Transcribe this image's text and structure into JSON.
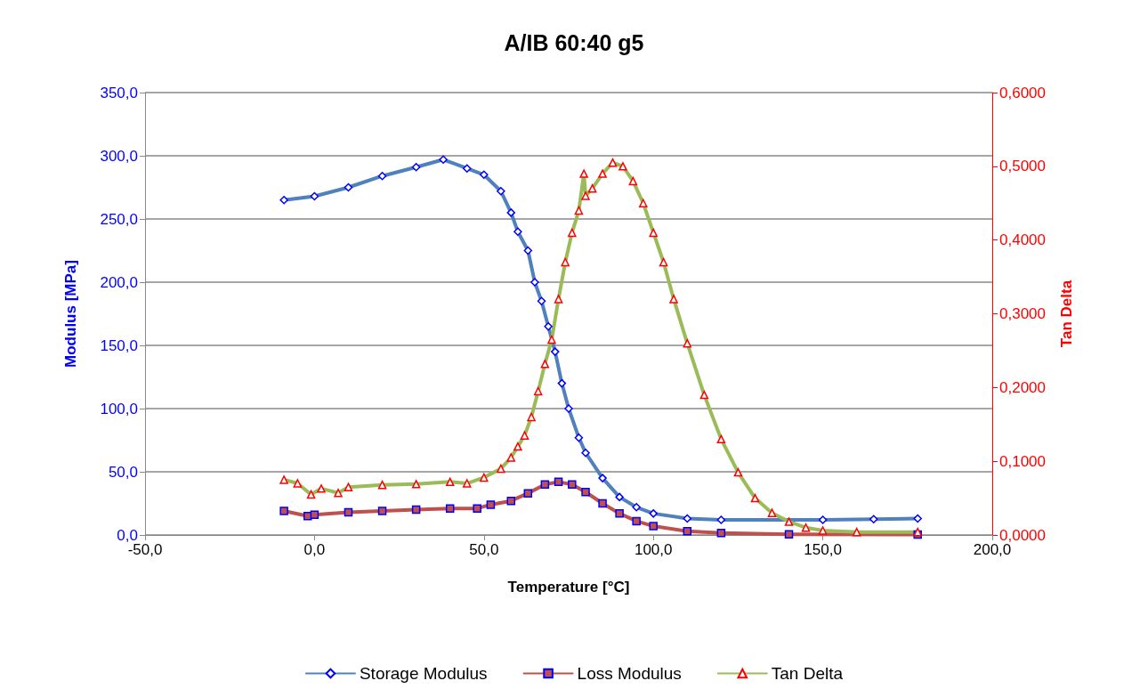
{
  "chart_data": {
    "type": "line",
    "title": "A/IB 60:40 g5",
    "xlabel": "Temperature [°C]",
    "ylabel": "Modulus [MPa]",
    "y2label": "Tan Delta",
    "xlim": [
      -50,
      200
    ],
    "xticks": [
      {
        "value": -50,
        "label": "-50,0"
      },
      {
        "value": 0,
        "label": "0,0"
      },
      {
        "value": 50,
        "label": "50,0"
      },
      {
        "value": 100,
        "label": "100,0"
      },
      {
        "value": 150,
        "label": "150,0"
      },
      {
        "value": 200,
        "label": "200,0"
      }
    ],
    "ylim": [
      0,
      350
    ],
    "yticks": [
      {
        "value": 0,
        "label": "0,0"
      },
      {
        "value": 50,
        "label": "50,0"
      },
      {
        "value": 100,
        "label": "100,0"
      },
      {
        "value": 150,
        "label": "150,0"
      },
      {
        "value": 200,
        "label": "200,0"
      },
      {
        "value": 250,
        "label": "250,0"
      },
      {
        "value": 300,
        "label": "300,0"
      },
      {
        "value": 350,
        "label": "350,0"
      }
    ],
    "y2lim": [
      0,
      0.6
    ],
    "y2ticks": [
      {
        "value": 0,
        "label": "0,0000"
      },
      {
        "value": 0.1,
        "label": "0,1000"
      },
      {
        "value": 0.2,
        "label": "0,2000"
      },
      {
        "value": 0.3,
        "label": "0,3000"
      },
      {
        "value": 0.4,
        "label": "0,4000"
      },
      {
        "value": 0.5,
        "label": "0,5000"
      },
      {
        "value": 0.6,
        "label": "0,6000"
      }
    ],
    "grid": "y",
    "legend": "bottom",
    "line_style": "solid",
    "series": [
      {
        "name": "Storage Modulus",
        "color": "#4f81bd",
        "marker": "diamond",
        "x": [
          -9,
          0,
          10,
          20,
          30,
          38,
          45,
          50,
          55,
          58,
          60,
          63,
          65,
          67,
          69,
          71,
          73,
          75,
          78,
          80,
          85,
          90,
          95,
          100,
          110,
          120,
          150,
          165,
          178
        ],
        "values": [
          265,
          268,
          275,
          284,
          291,
          297,
          290,
          285,
          272,
          255,
          240,
          225,
          200,
          185,
          165,
          145,
          120,
          100,
          77,
          65,
          45,
          30,
          22,
          17,
          13,
          12,
          12,
          12.5,
          13
        ]
      },
      {
        "name": "Loss Modulus",
        "color": "#c0504d",
        "marker": "square",
        "x": [
          -9,
          -2,
          0,
          10,
          20,
          30,
          40,
          48,
          52,
          58,
          63,
          68,
          72,
          76,
          80,
          85,
          90,
          95,
          100,
          110,
          120,
          140,
          178
        ],
        "values": [
          19,
          15,
          16,
          18,
          19,
          20,
          21,
          21,
          24,
          27,
          33,
          40,
          42,
          40,
          34,
          25,
          17,
          11,
          7,
          3,
          1.5,
          0.5,
          0.3
        ]
      },
      {
        "name": "Tan Delta",
        "color": "#9bbb59",
        "marker": "triangle",
        "axis": "y2",
        "x": [
          -9,
          -5,
          -1,
          2,
          7,
          10,
          20,
          30,
          40,
          45,
          50,
          55,
          58,
          60,
          62,
          64,
          66,
          68,
          70,
          72,
          74,
          76,
          78,
          79.5,
          80,
          82,
          85,
          88,
          91,
          94,
          97,
          100,
          103,
          106,
          110,
          115,
          120,
          125,
          130,
          135,
          140,
          145,
          150,
          160,
          178
        ],
        "values": [
          0.075,
          0.07,
          0.055,
          0.063,
          0.057,
          0.065,
          0.068,
          0.069,
          0.072,
          0.07,
          0.078,
          0.09,
          0.105,
          0.12,
          0.135,
          0.16,
          0.195,
          0.232,
          0.265,
          0.32,
          0.37,
          0.41,
          0.44,
          0.49,
          0.46,
          0.47,
          0.49,
          0.505,
          0.5,
          0.48,
          0.45,
          0.41,
          0.37,
          0.32,
          0.26,
          0.19,
          0.13,
          0.085,
          0.05,
          0.03,
          0.018,
          0.01,
          0.006,
          0.004,
          0.004
        ]
      }
    ]
  }
}
